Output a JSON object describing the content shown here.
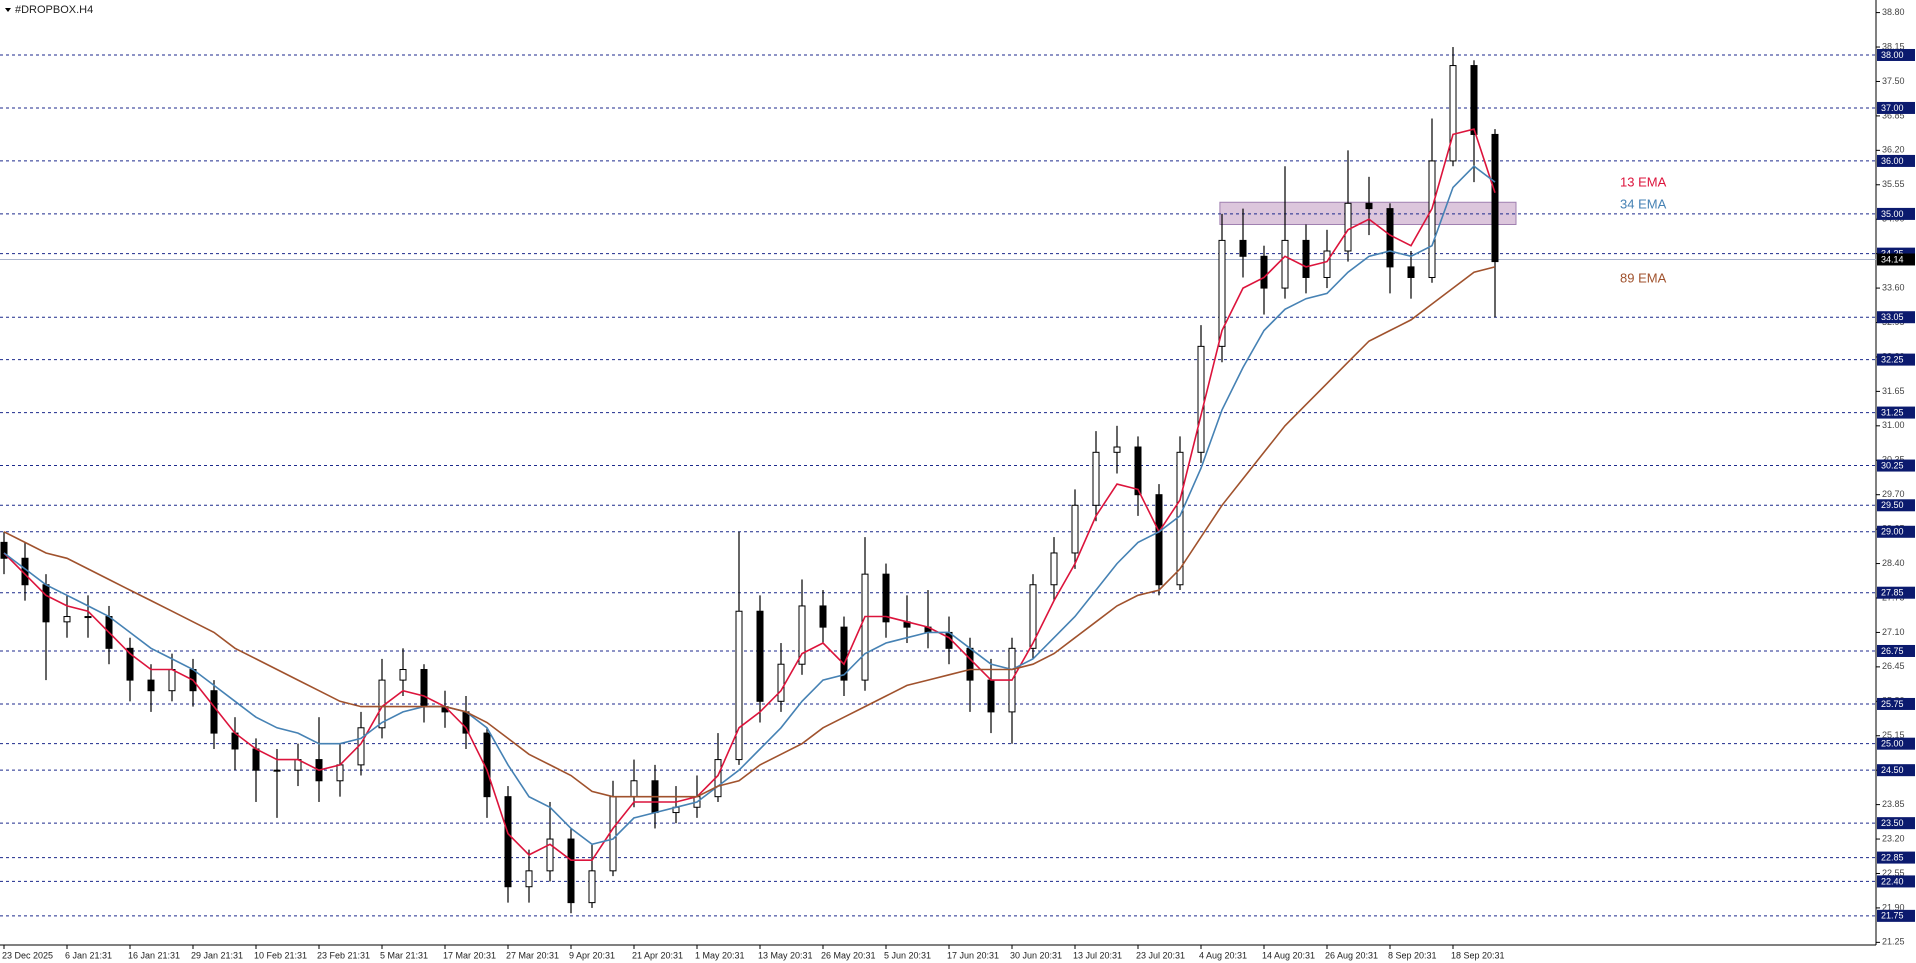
{
  "chart_data": {
    "type": "candlestick",
    "title": "#DROPBOX.H4",
    "categories": [
      "23 Dec 2025",
      null,
      null,
      "6 Jan 21:31",
      null,
      null,
      "16 Jan 21:31",
      null,
      null,
      "29 Jan 21:31",
      null,
      null,
      "10 Feb 21:31",
      null,
      null,
      "23 Feb 21:31",
      null,
      null,
      "5 Mar 21:31",
      null,
      null,
      "17 Mar 20:31",
      null,
      null,
      "27 Mar 20:31",
      null,
      null,
      "9 Apr 20:31",
      null,
      null,
      "21 Apr 20:31",
      null,
      null,
      "1 May 20:31",
      null,
      null,
      "13 May 20:31",
      null,
      null,
      "26 May 20:31",
      null,
      null,
      "5 Jun 20:31",
      null,
      null,
      "17 Jun 20:31",
      null,
      null,
      "30 Jun 20:31",
      null,
      null,
      "13 Jul 20:31",
      null,
      null,
      "23 Jul 20:31",
      null,
      null,
      "4 Aug 20:31",
      null,
      null,
      "14 Aug 20:31",
      null,
      null,
      "26 Aug 20:31",
      null,
      null,
      "8 Sep 20:31",
      null,
      null,
      "18 Sep 20:31",
      null,
      null
    ],
    "open": [
      28.8,
      28.5,
      28.0,
      27.3,
      27.4,
      27.4,
      26.8,
      26.2,
      26.0,
      26.4,
      26.0,
      25.2,
      24.9,
      24.5,
      24.5,
      24.7,
      24.3,
      24.6,
      25.3,
      26.2,
      26.4,
      25.7,
      25.6,
      25.2,
      24.0,
      22.3,
      22.6,
      23.2,
      22.0,
      22.6,
      24.0,
      24.3,
      23.7,
      23.8,
      24.0,
      24.7,
      27.5,
      25.8,
      26.5,
      27.6,
      27.2,
      26.2,
      28.2,
      27.3,
      27.2,
      27.1,
      26.8,
      26.2,
      25.6,
      26.8,
      28.0,
      28.6,
      29.5,
      30.5,
      30.6,
      29.7,
      28.0,
      30.5,
      32.5,
      34.5,
      34.2,
      33.6,
      34.5,
      33.8,
      34.3,
      35.2,
      35.1,
      34.0,
      33.8,
      36.0,
      37.8,
      36.5
    ],
    "high": [
      29.0,
      28.8,
      28.2,
      27.8,
      27.8,
      27.6,
      27.0,
      26.5,
      26.7,
      26.6,
      26.2,
      25.5,
      25.1,
      24.9,
      25.0,
      25.5,
      25.0,
      25.6,
      26.6,
      26.8,
      26.5,
      26.0,
      25.9,
      25.3,
      24.2,
      23.0,
      23.9,
      23.4,
      23.1,
      24.3,
      24.7,
      24.6,
      24.2,
      24.4,
      25.2,
      29.0,
      27.8,
      26.9,
      28.1,
      27.9,
      27.4,
      28.9,
      28.4,
      27.8,
      27.9,
      27.4,
      27.0,
      26.6,
      27.0,
      28.2,
      28.9,
      29.8,
      30.9,
      31.0,
      30.8,
      29.9,
      30.8,
      32.9,
      35.0,
      35.1,
      34.4,
      35.9,
      34.8,
      34.7,
      36.2,
      35.7,
      35.2,
      34.3,
      36.8,
      38.15,
      37.9,
      36.6
    ],
    "low": [
      28.2,
      27.7,
      26.2,
      27.0,
      27.0,
      26.5,
      25.8,
      25.6,
      25.8,
      25.7,
      24.9,
      24.5,
      23.9,
      23.6,
      24.2,
      23.9,
      24.0,
      24.4,
      25.1,
      25.9,
      25.4,
      25.3,
      24.9,
      23.6,
      22.0,
      22.0,
      22.4,
      21.8,
      21.9,
      22.5,
      23.8,
      23.4,
      23.5,
      23.6,
      23.9,
      24.6,
      25.4,
      25.6,
      26.3,
      26.9,
      25.9,
      26.0,
      27.0,
      26.9,
      26.8,
      26.5,
      25.6,
      25.2,
      25.0,
      26.6,
      27.7,
      28.3,
      29.2,
      30.1,
      29.3,
      27.8,
      27.9,
      30.3,
      32.2,
      33.8,
      33.1,
      33.4,
      33.5,
      33.6,
      34.1,
      34.6,
      33.5,
      33.4,
      33.7,
      35.9,
      35.6,
      33.05
    ],
    "close": [
      28.5,
      28.0,
      27.3,
      27.4,
      27.4,
      26.8,
      26.2,
      26.0,
      26.4,
      26.0,
      25.2,
      24.9,
      24.5,
      24.5,
      24.7,
      24.3,
      24.6,
      25.3,
      26.2,
      26.4,
      25.7,
      25.6,
      25.2,
      24.0,
      22.3,
      22.6,
      23.2,
      22.0,
      22.6,
      24.0,
      24.3,
      23.7,
      23.8,
      24.0,
      24.7,
      27.5,
      25.8,
      26.5,
      27.6,
      27.2,
      26.2,
      28.2,
      27.3,
      27.2,
      27.1,
      26.8,
      26.2,
      25.6,
      26.8,
      28.0,
      28.6,
      29.5,
      30.5,
      30.6,
      29.7,
      28.0,
      30.5,
      32.5,
      34.5,
      34.2,
      33.6,
      34.5,
      33.8,
      34.3,
      35.2,
      35.1,
      34.0,
      33.8,
      36.0,
      37.8,
      36.5,
      34.1
    ],
    "series": [
      {
        "name": "13 EMA",
        "color": "#dc143c",
        "values": [
          28.6,
          28.2,
          27.8,
          27.6,
          27.5,
          27.1,
          26.7,
          26.4,
          26.4,
          26.2,
          25.7,
          25.2,
          24.9,
          24.7,
          24.7,
          24.5,
          24.6,
          25.0,
          25.7,
          26.0,
          25.9,
          25.7,
          25.3,
          24.5,
          23.3,
          22.9,
          23.1,
          22.8,
          22.8,
          23.4,
          23.9,
          23.9,
          23.9,
          24.0,
          24.4,
          25.3,
          25.6,
          26.0,
          26.7,
          26.9,
          26.5,
          27.4,
          27.4,
          27.3,
          27.2,
          27.0,
          26.6,
          26.2,
          26.2,
          26.9,
          27.7,
          28.4,
          29.3,
          29.9,
          29.8,
          29.0,
          29.6,
          31.2,
          32.8,
          33.6,
          33.8,
          34.2,
          34.0,
          34.1,
          34.7,
          34.9,
          34.6,
          34.4,
          35.1,
          36.5,
          36.6,
          35.4
        ]
      },
      {
        "name": "34 EMA",
        "color": "#4682b4",
        "values": [
          28.6,
          28.3,
          28.0,
          27.8,
          27.6,
          27.4,
          27.1,
          26.8,
          26.6,
          26.4,
          26.1,
          25.8,
          25.5,
          25.3,
          25.2,
          25.0,
          25.0,
          25.1,
          25.4,
          25.6,
          25.7,
          25.7,
          25.6,
          25.3,
          24.6,
          24.0,
          23.8,
          23.4,
          23.1,
          23.2,
          23.6,
          23.7,
          23.8,
          23.9,
          24.2,
          24.5,
          24.9,
          25.3,
          25.8,
          26.2,
          26.3,
          26.7,
          26.9,
          27.0,
          27.1,
          27.1,
          26.8,
          26.5,
          26.4,
          26.6,
          27.0,
          27.4,
          27.9,
          28.4,
          28.8,
          29.0,
          29.3,
          30.2,
          31.3,
          32.1,
          32.8,
          33.2,
          33.4,
          33.5,
          33.9,
          34.2,
          34.3,
          34.2,
          34.4,
          35.5,
          35.9,
          35.6
        ]
      },
      {
        "name": "89 EMA",
        "color": "#a0522d",
        "values": [
          29.0,
          28.8,
          28.6,
          28.5,
          28.3,
          28.1,
          27.9,
          27.7,
          27.5,
          27.3,
          27.1,
          26.8,
          26.6,
          26.4,
          26.2,
          26.0,
          25.8,
          25.7,
          25.7,
          25.7,
          25.7,
          25.7,
          25.6,
          25.4,
          25.1,
          24.8,
          24.6,
          24.4,
          24.1,
          24.0,
          24.0,
          24.0,
          24.0,
          24.0,
          24.2,
          24.3,
          24.6,
          24.8,
          25.0,
          25.3,
          25.5,
          25.7,
          25.9,
          26.1,
          26.2,
          26.3,
          26.4,
          26.4,
          26.4,
          26.5,
          26.7,
          27.0,
          27.3,
          27.6,
          27.8,
          27.9,
          28.3,
          28.9,
          29.5,
          30.0,
          30.5,
          31.0,
          31.4,
          31.8,
          32.2,
          32.6,
          32.8,
          33.0,
          33.3,
          33.6,
          33.9,
          34.0
        ]
      }
    ],
    "ylim": [
      21.2,
      39.0
    ],
    "yticks": [
      {
        "value": 38.8,
        "label": "38.80"
      },
      38.15,
      {
        "value": 37.5,
        "label": "37.50"
      },
      36.85,
      {
        "value": 36.2,
        "label": "36.20"
      },
      35.55,
      {
        "value": 34.9,
        "label": "34.90"
      },
      34.25,
      {
        "value": 33.6,
        "label": "33.60"
      },
      32.95,
      {
        "value": 32.3,
        "label": "32.30"
      },
      31.65,
      {
        "value": 31,
        "label": "31.00"
      },
      30.35,
      {
        "value": 29.7,
        "label": "29.70"
      },
      29.05,
      {
        "value": 28.4,
        "label": "28.40"
      },
      27.75,
      {
        "value": 27.1,
        "label": "27.10"
      },
      26.45,
      {
        "value": 25.8,
        "label": "25.80"
      },
      25.15,
      {
        "value": 24.5,
        "label": "24.50"
      },
      23.85,
      {
        "value": 23.2,
        "label": "23.20"
      },
      22.55,
      {
        "value": 21.9,
        "label": "21.90"
      },
      21.25
    ],
    "levels": [
      {
        "value": 38,
        "label": "38.00"
      },
      {
        "value": 37,
        "label": "37.00"
      },
      {
        "value": 36,
        "label": "36.00"
      },
      {
        "value": 35,
        "label": "35.00"
      },
      34.25,
      33.05,
      32.25,
      31.25,
      30.25,
      {
        "value": 29.5,
        "label": "29.50"
      },
      {
        "value": 29,
        "label": "29.00"
      },
      27.85,
      26.75,
      25.75,
      {
        "value": 25,
        "label": "25.00"
      },
      {
        "value": 24.5,
        "label": "24.50"
      },
      {
        "value": 23.5,
        "label": "23.50"
      },
      22.85,
      {
        "value": 22.4,
        "label": "22.40"
      },
      21.75
    ],
    "current_price": 34.14,
    "zone": [
      34.8,
      35.22
    ],
    "grid": false
  }
}
